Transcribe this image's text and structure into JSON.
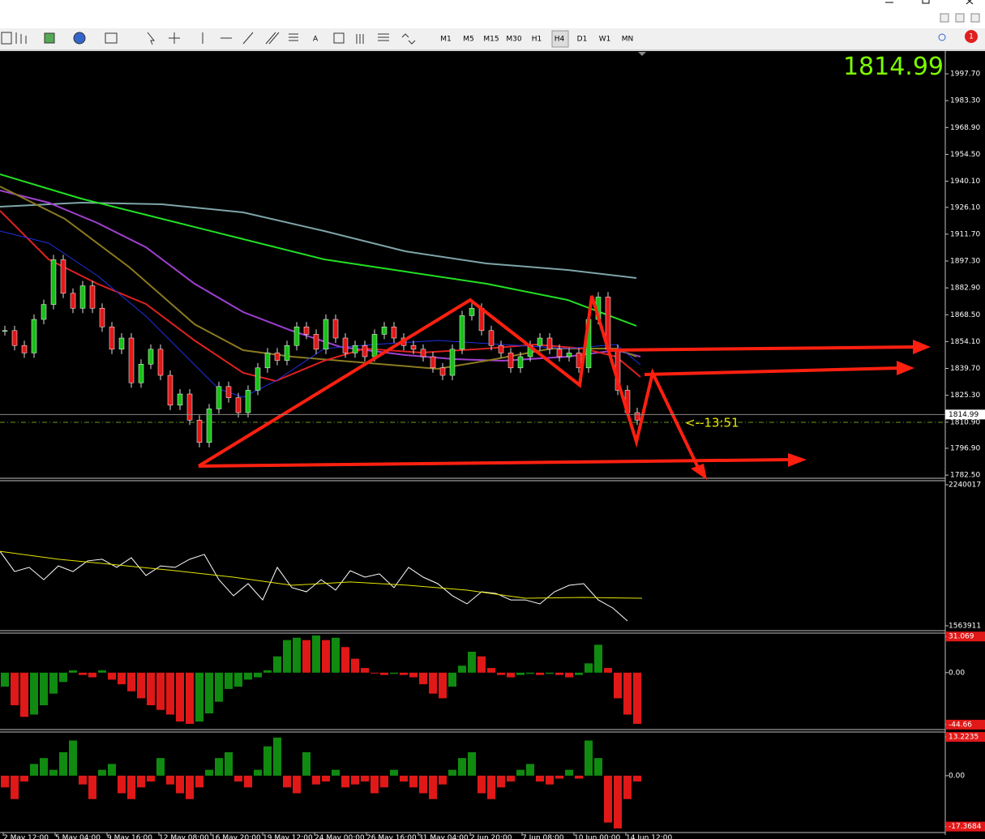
{
  "toolbar": {
    "timeframes": [
      "M1",
      "M5",
      "M15",
      "M30",
      "H1",
      "H4",
      "D1",
      "W1",
      "MN"
    ],
    "text_tool": "A",
    "notifications": "1"
  },
  "price_panel": {
    "ylim": [
      1780.8,
      2009.9
    ],
    "yticks": [
      {
        "value": 1997.7,
        "label": "1997.70"
      },
      {
        "value": 1983.3,
        "label": "1983.30"
      },
      {
        "value": 1968.9,
        "label": "1968.90"
      },
      {
        "value": 1954.5,
        "label": "1954.50"
      },
      {
        "value": 1940.1,
        "label": "1940.10"
      },
      {
        "value": 1926.1,
        "label": "1926.10"
      },
      {
        "value": 1911.7,
        "label": "1911.70"
      },
      {
        "value": 1897.3,
        "label": "1897.30"
      },
      {
        "value": 1882.9,
        "label": "1882.90"
      },
      {
        "value": 1868.5,
        "label": "1868.50"
      },
      {
        "value": 1854.1,
        "label": "1854.10"
      },
      {
        "value": 1839.7,
        "label": "1839.70"
      },
      {
        "value": 1825.3,
        "label": "1825.30"
      },
      {
        "value": 1810.9,
        "label": "1810.90"
      },
      {
        "value": 1796.9,
        "label": "1796.90"
      },
      {
        "value": 1782.5,
        "label": "1782.50"
      }
    ],
    "closes": [
      1860,
      1852,
      1848,
      1866,
      1874,
      1898,
      1880,
      1872,
      1884,
      1872,
      1862,
      1850,
      1856,
      1832,
      1842,
      1850,
      1836,
      1820,
      1826,
      1812,
      1800,
      1818,
      1830,
      1824,
      1816,
      1828,
      1840,
      1848,
      1844,
      1852,
      1862,
      1858,
      1850,
      1866,
      1856,
      1848,
      1852,
      1846,
      1858,
      1862,
      1856,
      1852,
      1850,
      1846,
      1840,
      1836,
      1850,
      1868,
      1872,
      1860,
      1852,
      1848,
      1840,
      1846,
      1852,
      1856,
      1850,
      1846,
      1848,
      1840,
      1866,
      1878,
      1850,
      1828,
      1816,
      1812
    ],
    "current_price": 1814.99,
    "timer": "<--13:51"
  },
  "volume_panel": {
    "ylim": [
      1540600,
      2259400
    ],
    "yticks": [
      2240017,
      1563911
    ],
    "values": [
      1921000,
      1824000,
      1844000,
      1785000,
      1851000,
      1824000,
      1875000,
      1883000,
      1844000,
      1890000,
      1805000,
      1851000,
      1844000,
      1883000,
      1906000,
      1785000,
      1708000,
      1766000,
      1688000,
      1844000,
      1747000,
      1727000,
      1785000,
      1735000,
      1828000,
      1797000,
      1813000,
      1747000,
      1844000,
      1797000,
      1766000,
      1708000,
      1669000,
      1727000,
      1719000,
      1688000,
      1688000,
      1669000,
      1727000,
      1758000,
      1766000,
      1688000,
      1649000,
      1587000
    ],
    "average": [
      1921000,
      1883000,
      1856000,
      1828000,
      1797000,
      1758000,
      1774000,
      1758000,
      1735000,
      1696000,
      1700000,
      1696000
    ]
  },
  "oscillator_1": {
    "ylim": [
      -48.9,
      34.0
    ],
    "yticks": [
      31.069,
      {
        "value": 0,
        "label": "0.00"
      },
      -44.66
    ],
    "values": [
      -12,
      -28,
      -38,
      -36,
      -28,
      -18,
      -8,
      2,
      -2,
      -4,
      2,
      -6,
      -10,
      -16,
      -22,
      -28,
      -32,
      -36,
      -42,
      -44,
      -42,
      -35,
      -25,
      -14,
      -12,
      -6,
      -4,
      2,
      14,
      28,
      30,
      28,
      32,
      28,
      30,
      22,
      12,
      4,
      0,
      -2,
      -1,
      -2,
      -4,
      -10,
      -18,
      -22,
      -12,
      6,
      18,
      14,
      4,
      -2,
      -4,
      -2,
      -1,
      -2,
      -1,
      -2,
      -4,
      -2,
      8,
      24,
      4,
      -22,
      -36,
      -44
    ]
  },
  "oscillator_2": {
    "ylim": [
      -19.4,
      14.9
    ],
    "yticks": [
      13.2235,
      {
        "value": 0,
        "label": "0.00"
      },
      -17.3684
    ],
    "values": [
      -4,
      -8,
      -2,
      4,
      6,
      2,
      8,
      12,
      -3,
      -8,
      2,
      4,
      -6,
      -8,
      -4,
      -2,
      6,
      -3,
      -6,
      -8,
      -4,
      2,
      6,
      8,
      -2,
      -4,
      2,
      10,
      13,
      -4,
      -6,
      8,
      -3,
      -2,
      2,
      -4,
      -3,
      -2,
      -6,
      -4,
      2,
      -2,
      -4,
      -6,
      -8,
      -3,
      2,
      6,
      8,
      -6,
      -8,
      -4,
      -2,
      2,
      4,
      -2,
      -3,
      -1,
      2,
      -1,
      12,
      6,
      -16,
      -18,
      -8,
      -2
    ]
  },
  "x_labels": [
    "2 May 12:00",
    "5 May 04:00",
    "9 May 16:00",
    "12 May 08:00",
    "16 May 20:00",
    "19 May 12:00",
    "24 May 00:00",
    "26 May 16:00",
    "31 May 04:00",
    "2 Jun 20:00",
    "7 Jun 08:00",
    "10 Jun 00:00",
    "14 Jun 12:00"
  ]
}
